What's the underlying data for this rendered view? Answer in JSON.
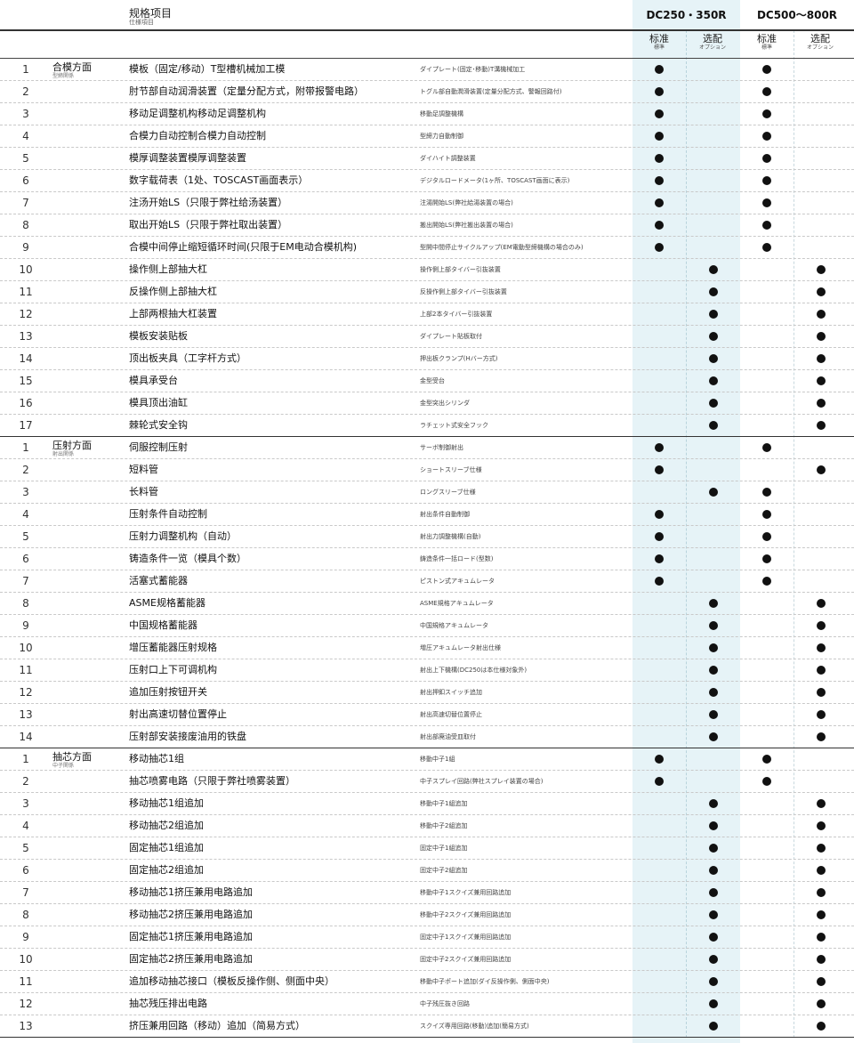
{
  "header": {
    "title": "规格项目",
    "subtitle": "仕様項目",
    "model_a": "DC250・350R",
    "model_b": "DC500～800R",
    "standard": "标准",
    "standard_sub": "標準",
    "option": "选配",
    "option_sub": "オプション"
  },
  "mark": "●",
  "sections": [
    {
      "category": "合模方面",
      "category_sub": "型締関係",
      "rows": [
        {
          "no": "1",
          "cn": "模板（固定/移动）T型槽机械加工模",
          "jp": "ダイプレート(固定･移動)T溝機械加工",
          "marks": [
            1,
            0,
            1,
            0
          ]
        },
        {
          "no": "2",
          "cn": "肘节部自动润滑装置（定量分配方式，附带报警电路）",
          "jp": "トグル部自動潤滑装置(定量分配方式、警報回路付)",
          "marks": [
            1,
            0,
            1,
            0
          ]
        },
        {
          "no": "3",
          "cn": "移动足调整机构移动足调整机构",
          "jp": "移動足調整機構",
          "marks": [
            1,
            0,
            1,
            0
          ]
        },
        {
          "no": "4",
          "cn": "合模力自动控制合模力自动控制",
          "jp": "型締力自動制御",
          "marks": [
            1,
            0,
            1,
            0
          ]
        },
        {
          "no": "5",
          "cn": "模厚调整装置模厚调整装置",
          "jp": "ダイハイト調整装置",
          "marks": [
            1,
            0,
            1,
            0
          ]
        },
        {
          "no": "6",
          "cn": "数字载荷表（1处、TOSCAST画面表示）",
          "jp": "デジタルロードメータ(1ヶ所、TOSCAST画面に表示)",
          "marks": [
            1,
            0,
            1,
            0
          ]
        },
        {
          "no": "7",
          "cn": "注汤开始LS（只限于弊社给汤装置）",
          "jp": "注湯開始LS(弊社給湯装置の場合)",
          "marks": [
            1,
            0,
            1,
            0
          ]
        },
        {
          "no": "8",
          "cn": "取出开始LS（只限于弊社取出装置）",
          "jp": "搬出開始LS(弊社搬出装置の場合)",
          "marks": [
            1,
            0,
            1,
            0
          ]
        },
        {
          "no": "9",
          "cn": "合模中间停止缩短循环时间(只限于EM电动合模机构)",
          "jp": "型開中間停止サイクルアップ(EM電動型締機構の場合のみ)",
          "marks": [
            1,
            0,
            1,
            0
          ]
        },
        {
          "no": "10",
          "cn": "操作侧上部抽大杠",
          "jp": "操作側上部タイバー引抜装置",
          "marks": [
            0,
            1,
            0,
            1
          ]
        },
        {
          "no": "11",
          "cn": "反操作侧上部抽大杠",
          "jp": "反操作側上部タイバー引抜装置",
          "marks": [
            0,
            1,
            0,
            1
          ]
        },
        {
          "no": "12",
          "cn": "上部两根抽大杠装置",
          "jp": "上部2本タイバー引抜装置",
          "marks": [
            0,
            1,
            0,
            1
          ]
        },
        {
          "no": "13",
          "cn": "模板安装贴板",
          "jp": "ダイプレート貼板取付",
          "marks": [
            0,
            1,
            0,
            1
          ]
        },
        {
          "no": "14",
          "cn": "顶出板夹具（工字杆方式）",
          "jp": "押出板クランプ(Hバー方式)",
          "marks": [
            0,
            1,
            0,
            1
          ]
        },
        {
          "no": "15",
          "cn": "模具承受台",
          "jp": "金型受台",
          "marks": [
            0,
            1,
            0,
            1
          ]
        },
        {
          "no": "16",
          "cn": "模具顶出油缸",
          "jp": "金型突出シリンダ",
          "marks": [
            0,
            1,
            0,
            1
          ]
        },
        {
          "no": "17",
          "cn": "棘轮式安全钩",
          "jp": "ラチェット式安全フック",
          "marks": [
            0,
            1,
            0,
            1
          ]
        }
      ]
    },
    {
      "category": "压射方面",
      "category_sub": "射出関係",
      "rows": [
        {
          "no": "1",
          "cn": "伺服控制压射",
          "jp": "サーボ制御射出",
          "marks": [
            1,
            0,
            1,
            0
          ]
        },
        {
          "no": "2",
          "cn": "短料管",
          "jp": "ショートスリーブ仕様",
          "marks": [
            1,
            0,
            0,
            1
          ]
        },
        {
          "no": "3",
          "cn": "长料管",
          "jp": "ロングスリーブ仕様",
          "marks": [
            0,
            1,
            1,
            0
          ]
        },
        {
          "no": "4",
          "cn": "压射条件自动控制",
          "jp": "射出条件自動制御",
          "marks": [
            1,
            0,
            1,
            0
          ]
        },
        {
          "no": "5",
          "cn": "压射力调整机构（自动）",
          "jp": "射出力調整機構(自動)",
          "marks": [
            1,
            0,
            1,
            0
          ]
        },
        {
          "no": "6",
          "cn": "铸造条件一览（模具个数）",
          "jp": "鋳造条件一括ロード(型数)",
          "marks": [
            1,
            0,
            1,
            0
          ]
        },
        {
          "no": "7",
          "cn": "活塞式蓄能器",
          "jp": "ピストン式アキュムレータ",
          "marks": [
            1,
            0,
            1,
            0
          ]
        },
        {
          "no": "8",
          "cn": "ASME规格蓄能器",
          "jp": "ASME規格アキュムレータ",
          "marks": [
            0,
            1,
            0,
            1
          ]
        },
        {
          "no": "9",
          "cn": "中国规格蓄能器",
          "jp": "中国規格アキュムレータ",
          "marks": [
            0,
            1,
            0,
            1
          ]
        },
        {
          "no": "10",
          "cn": "增压蓄能器压射规格",
          "jp": "増圧アキュムレータ射出仕様",
          "marks": [
            0,
            1,
            0,
            1
          ]
        },
        {
          "no": "11",
          "cn": "压射口上下可调机构",
          "jp": "射出上下機構(DC250は本仕様対象外)",
          "marks": [
            0,
            1,
            0,
            1
          ]
        },
        {
          "no": "12",
          "cn": "追加压射按钮开关",
          "jp": "射出押釦スイッチ追加",
          "marks": [
            0,
            1,
            0,
            1
          ]
        },
        {
          "no": "13",
          "cn": "射出高速切替位置停止",
          "jp": "射出高速切替位置停止",
          "marks": [
            0,
            1,
            0,
            1
          ]
        },
        {
          "no": "14",
          "cn": "压射部安装接废油用的铁盘",
          "jp": "射出部廃油受皿取付",
          "marks": [
            0,
            1,
            0,
            1
          ]
        }
      ]
    },
    {
      "category": "抽芯方面",
      "category_sub": "中子関係",
      "rows": [
        {
          "no": "1",
          "cn": "移动抽芯1组",
          "jp": "移動中子1組",
          "marks": [
            1,
            0,
            1,
            0
          ]
        },
        {
          "no": "2",
          "cn": "抽芯喷雾电路（只限于弊社喷雾装置）",
          "jp": "中子スプレイ回路(弊社スプレイ装置の場合)",
          "marks": [
            1,
            0,
            1,
            0
          ]
        },
        {
          "no": "3",
          "cn": "移动抽芯1组追加",
          "jp": "移動中子1組追加",
          "marks": [
            0,
            1,
            0,
            1
          ]
        },
        {
          "no": "4",
          "cn": "移动抽芯2组追加",
          "jp": "移動中子2組追加",
          "marks": [
            0,
            1,
            0,
            1
          ]
        },
        {
          "no": "5",
          "cn": "固定抽芯1组追加",
          "jp": "固定中子1組追加",
          "marks": [
            0,
            1,
            0,
            1
          ]
        },
        {
          "no": "6",
          "cn": "固定抽芯2组追加",
          "jp": "固定中子2組追加",
          "marks": [
            0,
            1,
            0,
            1
          ]
        },
        {
          "no": "7",
          "cn": "移动抽芯1挤压兼用电路追加",
          "jp": "移動中子1スクイズ兼用回路追加",
          "marks": [
            0,
            1,
            0,
            1
          ]
        },
        {
          "no": "8",
          "cn": "移动抽芯2挤压兼用电路追加",
          "jp": "移動中子2スクイズ兼用回路追加",
          "marks": [
            0,
            1,
            0,
            1
          ]
        },
        {
          "no": "9",
          "cn": "固定抽芯1挤压兼用电路追加",
          "jp": "固定中子1スクイズ兼用回路追加",
          "marks": [
            0,
            1,
            0,
            1
          ]
        },
        {
          "no": "10",
          "cn": "固定抽芯2挤压兼用电路追加",
          "jp": "固定中子2スクイズ兼用回路追加",
          "marks": [
            0,
            1,
            0,
            1
          ]
        },
        {
          "no": "11",
          "cn": "追加移动抽芯接口（模板反操作侧、侧面中央）",
          "jp": "移動中子ポート追加(ダイ反操作側、側面中央)",
          "marks": [
            0,
            1,
            0,
            1
          ]
        },
        {
          "no": "12",
          "cn": "抽芯残压排出电路",
          "jp": "中子残圧抜き回路",
          "marks": [
            0,
            1,
            0,
            1
          ]
        },
        {
          "no": "13",
          "cn": "挤压兼用回路（移动）追加（简易方式）",
          "jp": "スクイズ専用回路(移動)追加(簡易方式)",
          "marks": [
            0,
            1,
            0,
            1
          ]
        }
      ]
    }
  ]
}
